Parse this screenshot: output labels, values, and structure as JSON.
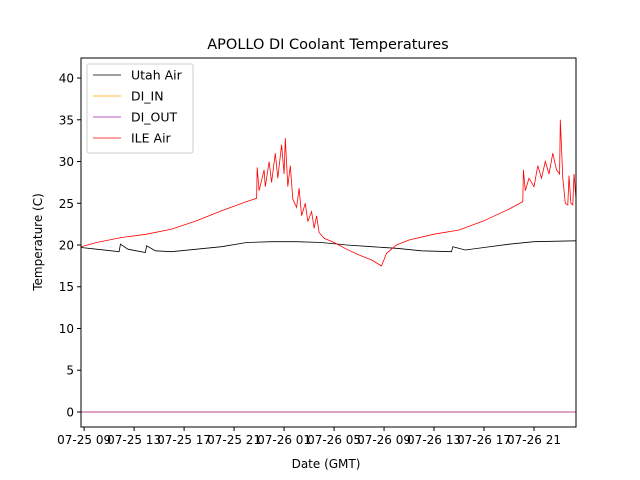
{
  "chart_data": {
    "type": "line",
    "title": "APOLLO DI Coolant Temperatures",
    "xlabel": "Date (GMT)",
    "ylabel": "Temperature (C)",
    "x_hours_since_07_25_00": true,
    "xlim": [
      8.75,
      48.36
    ],
    "ylim": [
      -1.8,
      42.4
    ],
    "xticks": [
      {
        "value": 9,
        "label": "07-25 09"
      },
      {
        "value": 13,
        "label": "07-25 13"
      },
      {
        "value": 17,
        "label": "07-25 17"
      },
      {
        "value": 21,
        "label": "07-25 21"
      },
      {
        "value": 25,
        "label": "07-26 01"
      },
      {
        "value": 29,
        "label": "07-26 05"
      },
      {
        "value": 33,
        "label": "07-26 09"
      },
      {
        "value": 37,
        "label": "07-26 13"
      },
      {
        "value": 41,
        "label": "07-26 17"
      },
      {
        "value": 45,
        "label": "07-26 21"
      }
    ],
    "yticks": [
      0,
      5,
      10,
      15,
      20,
      25,
      30,
      35,
      40
    ],
    "grid": false,
    "legend_position": "top-left",
    "series": [
      {
        "name": "Utah Air",
        "color": "#000000",
        "points": [
          [
            8.75,
            19.7
          ],
          [
            10,
            19.5
          ],
          [
            11.8,
            19.2
          ],
          [
            11.9,
            20.1
          ],
          [
            12.5,
            19.5
          ],
          [
            13.9,
            19.1
          ],
          [
            14,
            19.9
          ],
          [
            14.7,
            19.3
          ],
          [
            16,
            19.2
          ],
          [
            18,
            19.5
          ],
          [
            20,
            19.8
          ],
          [
            22,
            20.3
          ],
          [
            24,
            20.4
          ],
          [
            26,
            20.4
          ],
          [
            28,
            20.3
          ],
          [
            30,
            20.0
          ],
          [
            32,
            19.8
          ],
          [
            34,
            19.6
          ],
          [
            36,
            19.3
          ],
          [
            38.4,
            19.2
          ],
          [
            38.5,
            19.8
          ],
          [
            39.5,
            19.4
          ],
          [
            41,
            19.7
          ],
          [
            43,
            20.1
          ],
          [
            45,
            20.4
          ],
          [
            48.36,
            20.5
          ]
        ]
      },
      {
        "name": "DI_IN",
        "color": "#ffa500",
        "points": [
          [
            8.75,
            0
          ],
          [
            48.36,
            0
          ]
        ]
      },
      {
        "name": "DI_OUT",
        "color": "#a020a0",
        "points": [
          [
            8.75,
            0
          ],
          [
            48.36,
            0
          ]
        ]
      },
      {
        "name": "ILE Air",
        "color": "#ff0000",
        "points": [
          [
            8.75,
            19.8
          ],
          [
            10,
            20.3
          ],
          [
            12,
            20.9
          ],
          [
            14,
            21.3
          ],
          [
            16,
            21.9
          ],
          [
            18,
            22.9
          ],
          [
            20,
            24.1
          ],
          [
            22,
            25.2
          ],
          [
            22.8,
            25.6
          ],
          [
            22.85,
            29.3
          ],
          [
            23,
            26.5
          ],
          [
            23.4,
            29
          ],
          [
            23.5,
            27
          ],
          [
            23.8,
            30
          ],
          [
            24,
            27.5
          ],
          [
            24.3,
            31
          ],
          [
            24.5,
            28
          ],
          [
            24.8,
            32
          ],
          [
            25,
            28.5
          ],
          [
            25.1,
            32.8
          ],
          [
            25.3,
            27
          ],
          [
            25.5,
            29.5
          ],
          [
            25.7,
            25.5
          ],
          [
            26,
            24.5
          ],
          [
            26.2,
            26.8
          ],
          [
            26.4,
            23.5
          ],
          [
            26.7,
            25
          ],
          [
            26.9,
            22.8
          ],
          [
            27.2,
            24
          ],
          [
            27.4,
            22
          ],
          [
            27.6,
            23.5
          ],
          [
            27.8,
            21.5
          ],
          [
            28.2,
            20.8
          ],
          [
            29,
            20.3
          ],
          [
            30,
            19.5
          ],
          [
            31,
            18.8
          ],
          [
            32,
            18.2
          ],
          [
            32.8,
            17.5
          ],
          [
            33.2,
            19
          ],
          [
            34,
            20
          ],
          [
            35,
            20.6
          ],
          [
            37,
            21.3
          ],
          [
            39,
            21.8
          ],
          [
            41,
            22.9
          ],
          [
            43,
            24.3
          ],
          [
            44.1,
            25.2
          ],
          [
            44.15,
            29
          ],
          [
            44.3,
            26.5
          ],
          [
            44.6,
            28
          ],
          [
            45,
            27
          ],
          [
            45.3,
            29.5
          ],
          [
            45.6,
            28
          ],
          [
            45.9,
            30
          ],
          [
            46.2,
            28.5
          ],
          [
            46.5,
            31
          ],
          [
            46.8,
            29
          ],
          [
            47.05,
            28.5
          ],
          [
            47.1,
            35
          ],
          [
            47.3,
            28
          ],
          [
            47.5,
            25
          ],
          [
            47.7,
            24.8
          ],
          [
            47.8,
            28.3
          ],
          [
            47.95,
            25
          ],
          [
            48.1,
            24.8
          ],
          [
            48.2,
            28.5
          ],
          [
            48.36,
            25.5
          ]
        ]
      }
    ]
  }
}
